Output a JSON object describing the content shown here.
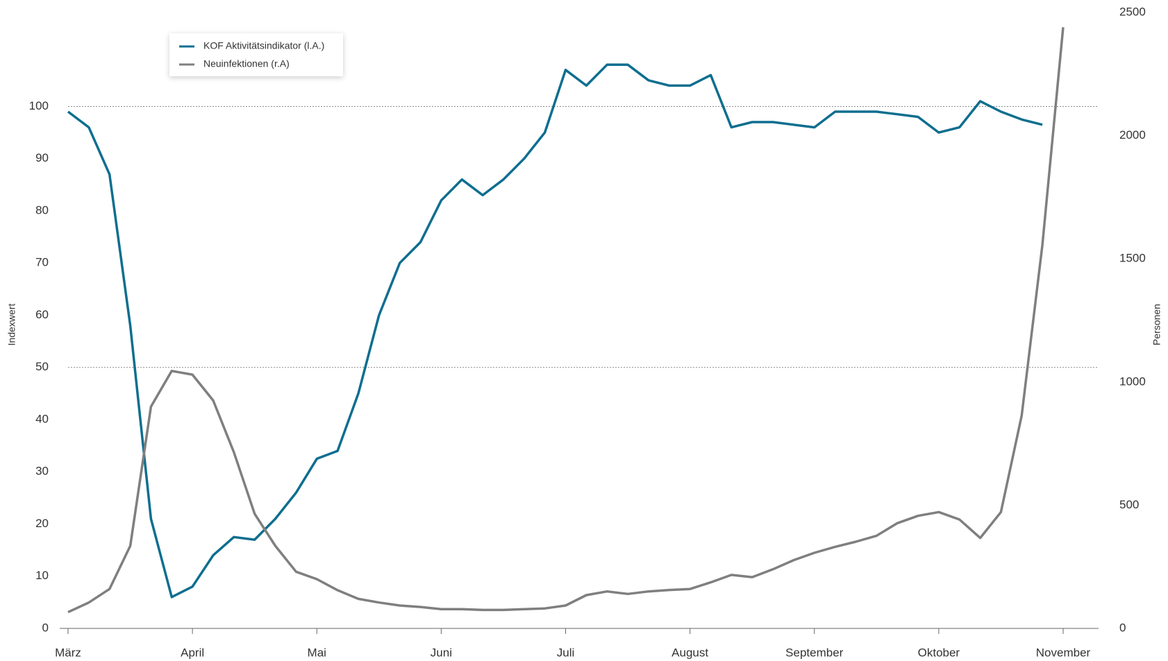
{
  "chart_data": {
    "type": "line",
    "y_label": "Indexwert",
    "y2_label": "Personen",
    "categories": [
      "März",
      null,
      null,
      null,
      null,
      null,
      "April",
      null,
      null,
      null,
      null,
      null,
      "Mai",
      null,
      null,
      null,
      null,
      null,
      "Juni",
      null,
      null,
      null,
      null,
      null,
      "Juli",
      null,
      null,
      null,
      null,
      null,
      "August",
      null,
      null,
      null,
      null,
      null,
      "September",
      null,
      null,
      null,
      null,
      null,
      "Oktober",
      null,
      null,
      null,
      null,
      null,
      "November"
    ],
    "series": [
      {
        "name": "KOF Aktivitätsindikator (l.A.)",
        "color": "#0e6e8f",
        "axis": "y",
        "values": [
          99,
          96,
          87,
          58,
          21,
          6,
          8,
          14,
          17.5,
          17,
          21,
          26,
          32.5,
          34,
          45,
          60,
          70,
          74,
          82,
          86,
          83,
          86,
          90,
          95,
          107,
          104,
          108,
          108,
          105,
          104,
          104,
          106,
          96,
          97,
          97,
          96.5,
          96,
          99,
          99,
          99,
          98.5,
          98,
          95,
          96,
          101,
          99,
          97.5,
          96.5,
          null
        ]
      },
      {
        "name": "Neuinfektionen (r.A)",
        "color": "#7f7f7f",
        "axis": "y2",
        "values": [
          66,
          105,
          160,
          335,
          900,
          1045,
          1030,
          925,
          715,
          465,
          335,
          230,
          200,
          155,
          120,
          105,
          93,
          87,
          78,
          78,
          75,
          75,
          78,
          81,
          93,
          135,
          150,
          140,
          150,
          156,
          160,
          187,
          217,
          208,
          240,
          277,
          307,
          331,
          352,
          376,
          427,
          457,
          472,
          442,
          367,
          472,
          864,
          1556,
          2440
        ]
      }
    ],
    "ylim": [
      0,
      118
    ],
    "yticks": [
      0,
      10,
      20,
      30,
      40,
      50,
      60,
      70,
      80,
      90,
      100
    ],
    "y2lim": [
      0,
      2500
    ],
    "y2ticks": [
      0,
      500,
      1000,
      1500,
      2000,
      2500
    ],
    "grid_lines": [
      50,
      100
    ]
  }
}
